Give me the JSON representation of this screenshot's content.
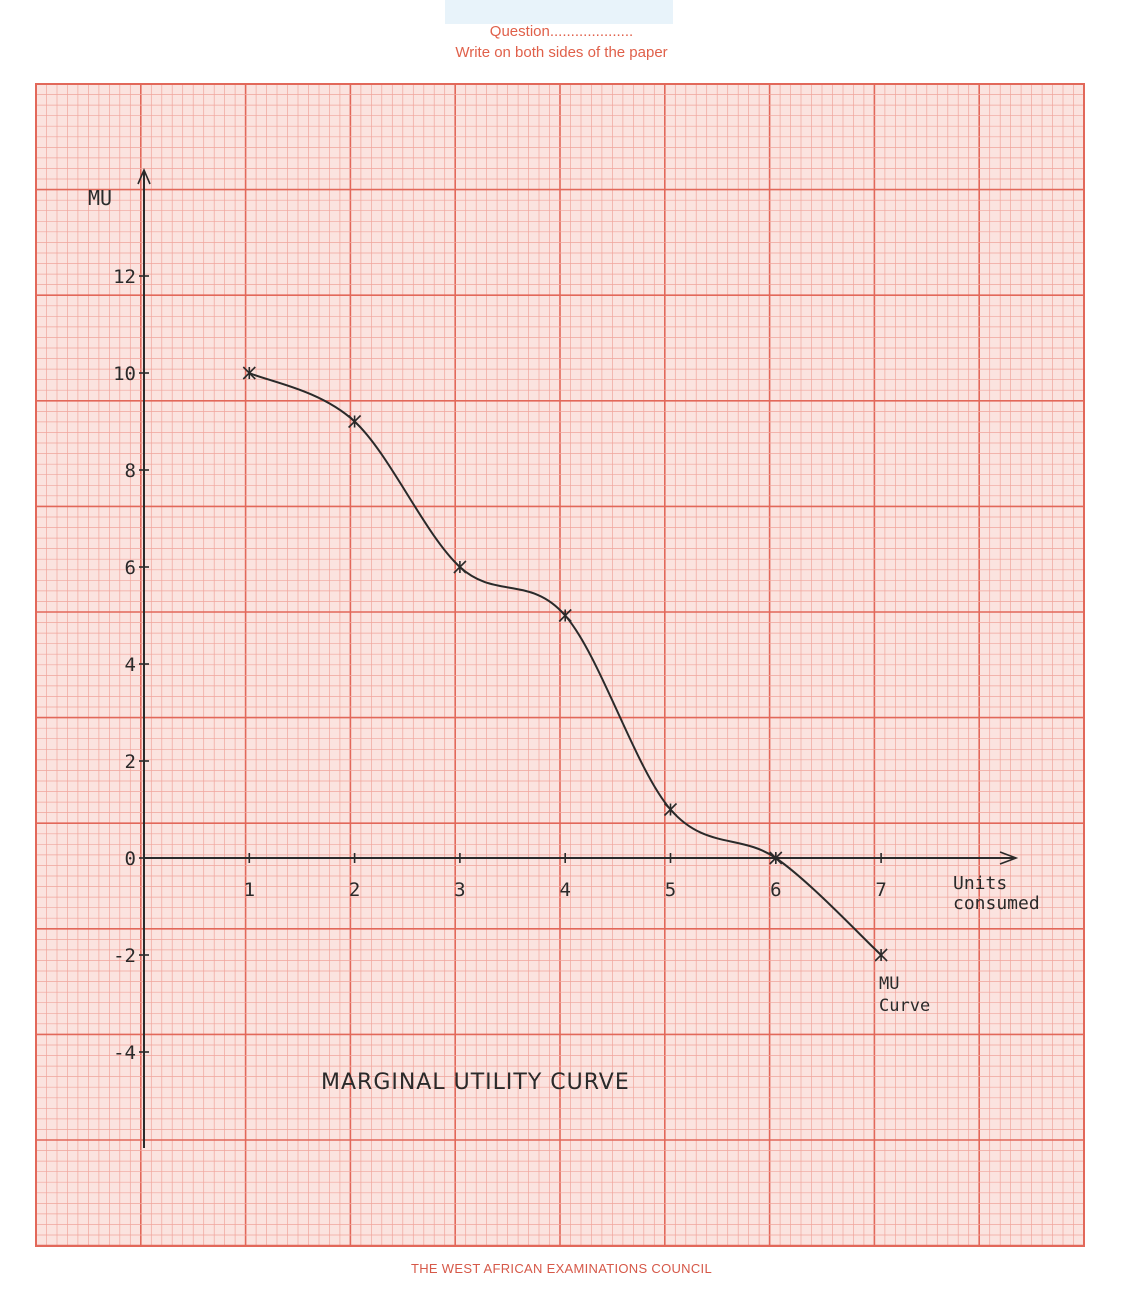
{
  "header": {
    "question": "Question....................",
    "instruction": "Write on both sides of the paper"
  },
  "footer": "THE WEST AFRICAN EXAMINATIONS COUNCIL",
  "colors": {
    "grid_fine": "#f0a59c",
    "grid_bold": "#e2685a",
    "paper": "#fbe3df",
    "ink": "#2a2a2a",
    "header_text": "#e0604a"
  },
  "chart_data": {
    "type": "line",
    "title": "MARGINAL UTILITY CURVE",
    "ylabel": "MU",
    "xlabel": "Units consumed",
    "xlabel_lines": [
      "Units",
      "consumed"
    ],
    "curve_label_lines": [
      "MU",
      "Curve"
    ],
    "x_ticks": [
      "1",
      "2",
      "3",
      "4",
      "5",
      "6",
      "7"
    ],
    "y_ticks": [
      "12",
      "10",
      "8",
      "6",
      "4",
      "2",
      "0",
      "-2",
      "-4"
    ],
    "x_tick_values": [
      1,
      2,
      3,
      4,
      5,
      6,
      7
    ],
    "y_tick_values": [
      12,
      10,
      8,
      6,
      4,
      2,
      0,
      -2,
      -4
    ],
    "xlim": [
      0,
      8.5
    ],
    "ylim": [
      -6,
      14
    ],
    "grid": true,
    "series": [
      {
        "x": [
          1,
          2,
          3,
          4,
          5,
          6,
          7
        ],
        "y": [
          10,
          9,
          6,
          5,
          1,
          0,
          -2
        ]
      }
    ]
  }
}
